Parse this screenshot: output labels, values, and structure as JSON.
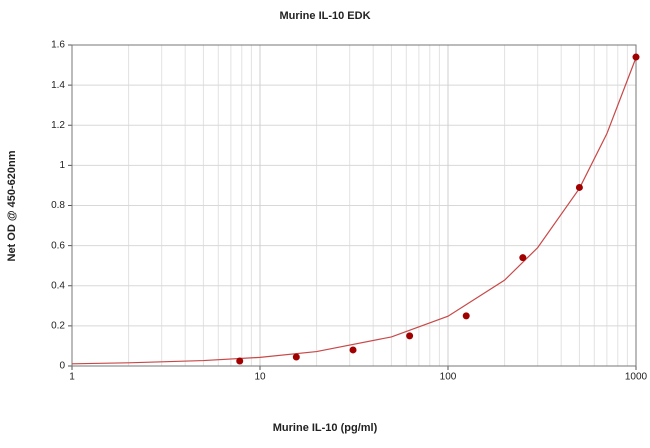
{
  "chart_data": {
    "type": "scatter",
    "title": "Murine IL-10 EDK",
    "x_label": "Murine IL-10 (pg/ml)",
    "y_label": "Net OD @ 450-620nm",
    "xscale": "log",
    "xlim": [
      1,
      1000
    ],
    "xticks": [
      1,
      10,
      100,
      1000
    ],
    "ylim": [
      0,
      1.6
    ],
    "yticks": [
      0,
      0.2,
      0.4,
      0.6,
      0.8,
      1,
      1.2,
      1.4,
      1.6
    ],
    "grid": true,
    "minor_grid": true,
    "series": [
      {
        "style": "points",
        "color": "#a00000",
        "x": [
          7.8,
          15.6,
          31.25,
          62.5,
          125,
          250,
          500,
          1000
        ],
        "values": [
          0.025,
          0.045,
          0.08,
          0.15,
          0.25,
          0.54,
          0.89,
          1.54
        ]
      },
      {
        "style": "line",
        "color": "#c84848",
        "x": [
          1,
          2,
          5,
          10,
          20,
          50,
          100,
          200,
          300,
          500,
          700,
          1000
        ],
        "values": [
          0.011,
          0.016,
          0.027,
          0.043,
          0.072,
          0.145,
          0.248,
          0.428,
          0.59,
          0.885,
          1.158,
          1.537
        ]
      }
    ]
  }
}
